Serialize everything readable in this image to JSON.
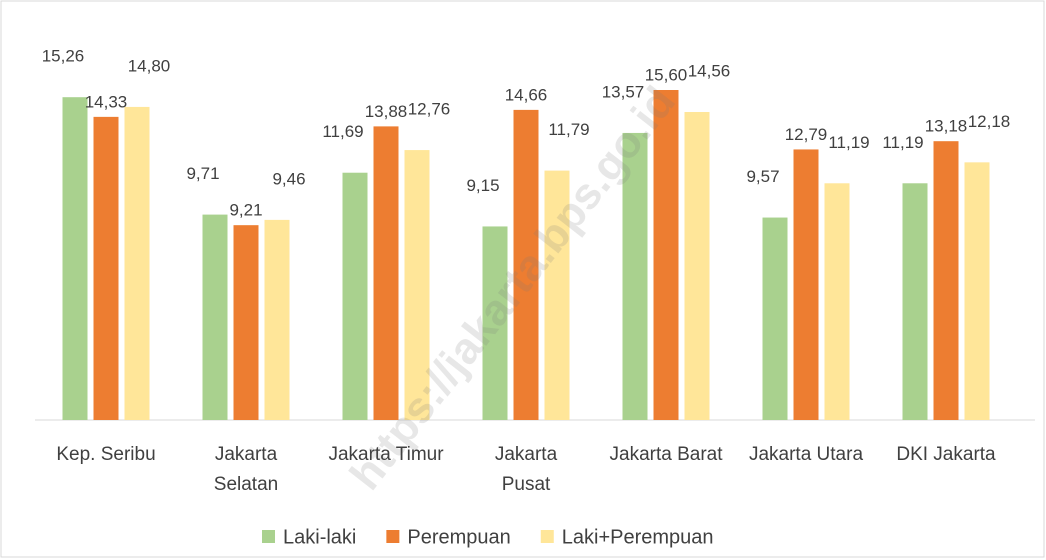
{
  "chart_data": {
    "type": "bar",
    "watermark": "https://jakarta.bps.go.id",
    "categories": [
      "Kep. Seribu",
      "Jakarta Selatan",
      "Jakarta Timur",
      "Jakarta Pusat",
      "Jakarta Barat",
      "Jakarta Utara",
      "DKI Jakarta"
    ],
    "series": [
      {
        "name": "Laki-laki",
        "color": "#a9d18e",
        "values": [
          15.26,
          9.71,
          11.69,
          9.15,
          13.57,
          9.57,
          11.19
        ],
        "value_labels": [
          "15,26",
          "9,71",
          "11,69",
          "9,15",
          "13,57",
          "9,57",
          "11,19"
        ]
      },
      {
        "name": "Perempuan",
        "color": "#ed7d31",
        "values": [
          14.33,
          9.21,
          13.88,
          14.66,
          15.6,
          12.79,
          13.18
        ],
        "value_labels": [
          "14,33",
          "9,21",
          "13,88",
          "14,66",
          "15,60",
          "12,79",
          "13,18"
        ]
      },
      {
        "name": "Laki+Perempuan",
        "color": "#ffe699",
        "values": [
          14.8,
          9.46,
          12.76,
          11.79,
          14.56,
          11.19,
          12.18
        ],
        "value_labels": [
          "14,80",
          "9,46",
          "12,76",
          "11,79",
          "14,56",
          "11,19",
          "12,18"
        ]
      }
    ],
    "legend": "bottom",
    "grid": false
  }
}
